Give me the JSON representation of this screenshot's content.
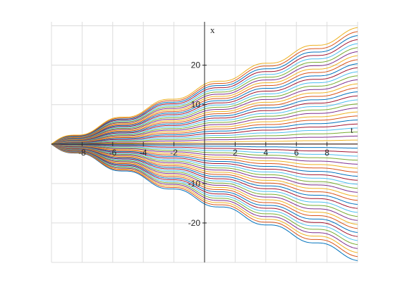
{
  "chart_data": {
    "type": "line",
    "title": "",
    "xlabel": "t",
    "ylabel": "x",
    "xlim": [
      -10,
      10
    ],
    "ylim": [
      -30,
      31
    ],
    "grid": true,
    "axis_location": "origin",
    "x_ticks": [
      -8,
      -6,
      -4,
      -2,
      2,
      4,
      6,
      8
    ],
    "x_tick_labels": [
      "-8",
      "-6",
      "-4",
      "-2",
      "2",
      "4",
      "6",
      "8"
    ],
    "y_ticks": [
      -20,
      -10,
      10,
      20
    ],
    "y_tick_labels": [
      "-20",
      "-10",
      "10",
      "20"
    ],
    "series_description": "Family of curves starting at x = 0 when t = -10, spreading out with wavy growth; initial slopes c from -1.45 to 1.45 in steps of 0.05",
    "family": {
      "t_start": -10,
      "t_end": 10,
      "x_at_start": 0,
      "c_values": [
        -1.45,
        -1.4,
        -1.35,
        -1.3,
        -1.25,
        -1.2,
        -1.15,
        -1.1,
        -1.05,
        -1.0,
        -0.95,
        -0.9,
        -0.85,
        -0.8,
        -0.75,
        -0.7,
        -0.65,
        -0.6,
        -0.55,
        -0.5,
        -0.45,
        -0.4,
        -0.35,
        -0.3,
        -0.25,
        -0.2,
        -0.15,
        -0.1,
        -0.05,
        0,
        0.05,
        0.1,
        0.15,
        0.2,
        0.25,
        0.3,
        0.35,
        0.4,
        0.45,
        0.5,
        0.55,
        0.6,
        0.65,
        0.7,
        0.75,
        0.8,
        0.85,
        0.9,
        0.95,
        1.0,
        1.05,
        1.1,
        1.15,
        1.2,
        1.25,
        1.3,
        1.35,
        1.4,
        1.45
      ],
      "wave_amplitude": 0.5,
      "wave_frequency": 2
    },
    "end_values_approx": {
      "top_at_t10": 29.7,
      "bottom_at_t10": -29.7
    },
    "colors": [
      "#0072bd",
      "#d95319",
      "#edb120",
      "#7e2f8e",
      "#77ac30",
      "#4dbeee",
      "#a2142f"
    ]
  }
}
